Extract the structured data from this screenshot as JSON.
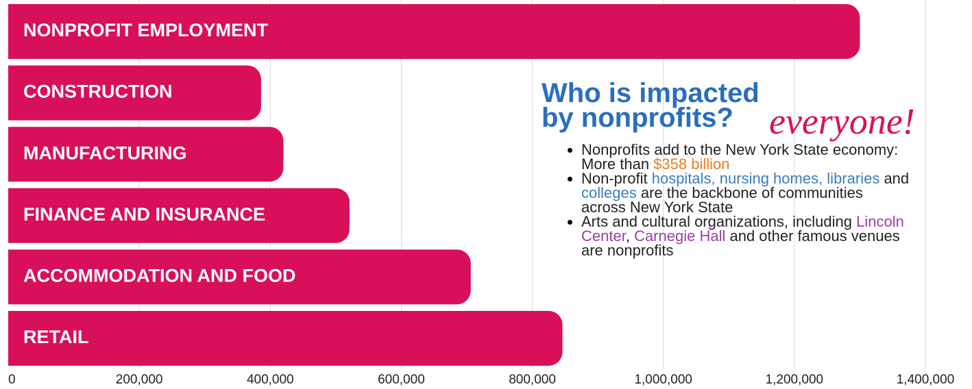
{
  "chart_data": {
    "type": "barh",
    "categories": [
      "NONPROFIT EMPLOYMENT",
      "CONSTRUCTION",
      "MANUFACTURING",
      "FINANCE AND INSURANCE",
      "ACCOMMODATION AND FOOD",
      "RETAIL"
    ],
    "values": [
      1300000,
      386000,
      420000,
      521000,
      706000,
      846000
    ],
    "color": "#d80f5a",
    "xlim": [
      0,
      1400000
    ],
    "xticks": [
      0,
      {
        "value": 200000,
        "label": "200,000"
      },
      {
        "value": 400000,
        "label": "400,000"
      },
      {
        "value": 600000,
        "label": "600,000"
      },
      {
        "value": 800000,
        "label": "800,000"
      },
      {
        "value": 1000000,
        "label": "1,000,000"
      },
      {
        "value": 1200000,
        "label": "1,200,000"
      },
      {
        "value": 1400000,
        "label": "1,400,000"
      }
    ],
    "grid": true,
    "annotations": {
      "heading": [
        "Who is impacted",
        "by nonprofits?"
      ],
      "heading_color": "#2a6ebb",
      "accent": "everyone!",
      "accent_color": "#d80f5a",
      "bullets": [
        [
          {
            "text": "Nonprofits add to the New York State economy: More than ",
            "color": "#222222"
          },
          {
            "text": "$358 billion",
            "color": "#f07c1e"
          }
        ],
        [
          {
            "text": "Non-profit ",
            "color": "#222222"
          },
          {
            "text": "hospitals, nursing homes, libraries",
            "color": "#3a7cc2"
          },
          {
            "text": " and ",
            "color": "#222222"
          },
          {
            "text": "colleges",
            "color": "#3a7cc2"
          },
          {
            "text": " are the backbone of communities across New York State",
            "color": "#222222"
          }
        ],
        [
          {
            "text": "Arts and cultural organizations, including ",
            "color": "#222222"
          },
          {
            "text": "Lincoln Center",
            "color": "#9b3fa6"
          },
          {
            "text": ", ",
            "color": "#222222"
          },
          {
            "text": "Carnegie Hall",
            "color": "#9b3fa6"
          },
          {
            "text": " and other famous venues are nonprofits",
            "color": "#222222"
          }
        ]
      ]
    }
  }
}
